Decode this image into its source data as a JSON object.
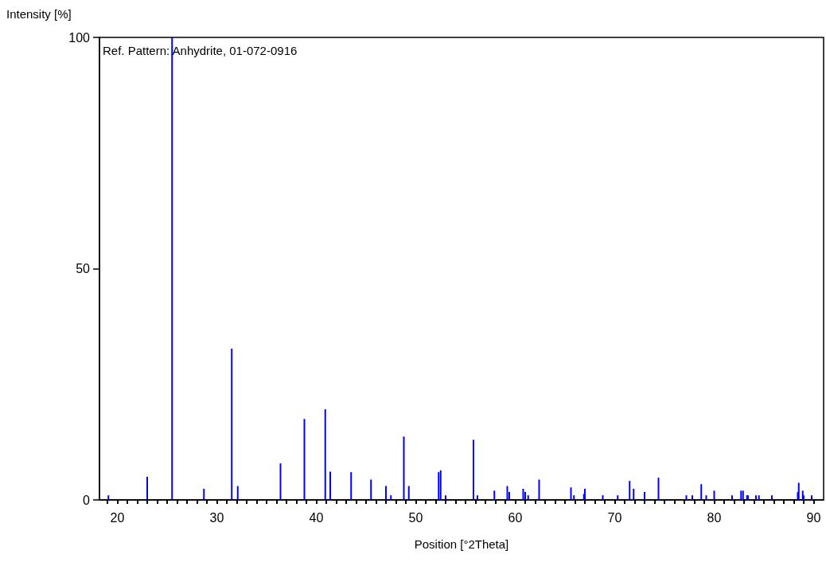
{
  "chart_data": {
    "type": "bar",
    "xlabel": "Position [°2Theta]",
    "ylabel": "Intensity [%]",
    "annotations": [
      "Ref. Pattern: Anhydrite, 01-072-0916"
    ],
    "x": [
      19.1,
      23.0,
      25.5,
      28.7,
      31.5,
      32.1,
      36.4,
      38.8,
      40.9,
      41.4,
      43.5,
      45.5,
      47.0,
      47.5,
      48.8,
      49.3,
      52.3,
      52.5,
      53.0,
      55.8,
      56.2,
      57.9,
      59.2,
      59.4,
      60.8,
      61.0,
      61.3,
      62.4,
      65.6,
      65.9,
      66.9,
      67.0,
      68.8,
      70.3,
      71.5,
      71.9,
      73.0,
      74.4,
      77.2,
      77.8,
      78.7,
      79.2,
      80.0,
      81.8,
      82.7,
      82.9,
      83.3,
      83.4,
      84.2,
      84.5,
      85.8,
      88.4,
      88.5,
      88.9,
      89.0,
      89.8
    ],
    "values": [
      1.0,
      5.0,
      100,
      2.4,
      32.7,
      3.0,
      7.9,
      17.5,
      19.6,
      6.1,
      6.0,
      4.4,
      3.0,
      1.0,
      13.7,
      3.0,
      6.0,
      6.4,
      1.0,
      13.0,
      1.0,
      2.0,
      3.0,
      1.7,
      2.4,
      1.7,
      1.0,
      4.4,
      2.7,
      1.0,
      1.3,
      2.4,
      1.0,
      1.0,
      4.1,
      2.4,
      1.7,
      4.8,
      1.0,
      1.0,
      3.4,
      1.0,
      2.0,
      1.0,
      2.0,
      2.0,
      1.0,
      1.0,
      1.0,
      1.0,
      1.0,
      1.7,
      3.7,
      2.0,
      1.0,
      1.0
    ],
    "color": "#0000ff",
    "xlim": [
      18.2,
      91
    ],
    "xticks": [
      {
        "value": 19,
        "label": null
      },
      20,
      {
        "value": 21,
        "label": null
      },
      {
        "value": 22,
        "label": null
      },
      {
        "value": 23,
        "label": null
      },
      {
        "value": 24,
        "label": null
      },
      {
        "value": 25,
        "label": null
      },
      {
        "value": 26,
        "label": null
      },
      {
        "value": 27,
        "label": null
      },
      {
        "value": 28,
        "label": null
      },
      {
        "value": 29,
        "label": null
      },
      30,
      {
        "value": 31,
        "label": null
      },
      {
        "value": 32,
        "label": null
      },
      {
        "value": 33,
        "label": null
      },
      {
        "value": 34,
        "label": null
      },
      {
        "value": 35,
        "label": null
      },
      {
        "value": 36,
        "label": null
      },
      {
        "value": 37,
        "label": null
      },
      {
        "value": 38,
        "label": null
      },
      {
        "value": 39,
        "label": null
      },
      40,
      {
        "value": 41,
        "label": null
      },
      {
        "value": 42,
        "label": null
      },
      {
        "value": 43,
        "label": null
      },
      {
        "value": 44,
        "label": null
      },
      {
        "value": 45,
        "label": null
      },
      {
        "value": 46,
        "label": null
      },
      {
        "value": 47,
        "label": null
      },
      {
        "value": 48,
        "label": null
      },
      {
        "value": 49,
        "label": null
      },
      50,
      {
        "value": 51,
        "label": null
      },
      {
        "value": 52,
        "label": null
      },
      {
        "value": 53,
        "label": null
      },
      {
        "value": 54,
        "label": null
      },
      {
        "value": 55,
        "label": null
      },
      {
        "value": 56,
        "label": null
      },
      {
        "value": 57,
        "label": null
      },
      {
        "value": 58,
        "label": null
      },
      {
        "value": 59,
        "label": null
      },
      60,
      {
        "value": 61,
        "label": null
      },
      {
        "value": 62,
        "label": null
      },
      {
        "value": 63,
        "label": null
      },
      {
        "value": 64,
        "label": null
      },
      {
        "value": 65,
        "label": null
      },
      {
        "value": 66,
        "label": null
      },
      {
        "value": 67,
        "label": null
      },
      {
        "value": 68,
        "label": null
      },
      {
        "value": 69,
        "label": null
      },
      70,
      {
        "value": 71,
        "label": null
      },
      {
        "value": 72,
        "label": null
      },
      {
        "value": 73,
        "label": null
      },
      {
        "value": 74,
        "label": null
      },
      {
        "value": 75,
        "label": null
      },
      {
        "value": 76,
        "label": null
      },
      {
        "value": 77,
        "label": null
      },
      {
        "value": 78,
        "label": null
      },
      {
        "value": 79,
        "label": null
      },
      80,
      {
        "value": 81,
        "label": null
      },
      {
        "value": 82,
        "label": null
      },
      {
        "value": 83,
        "label": null
      },
      {
        "value": 84,
        "label": null
      },
      {
        "value": 85,
        "label": null
      },
      {
        "value": 86,
        "label": null
      },
      {
        "value": 87,
        "label": null
      },
      {
        "value": 88,
        "label": null
      },
      {
        "value": 89,
        "label": null
      },
      90
    ],
    "ylim": [
      0,
      100
    ],
    "yticks": [
      0,
      50,
      100
    ]
  }
}
